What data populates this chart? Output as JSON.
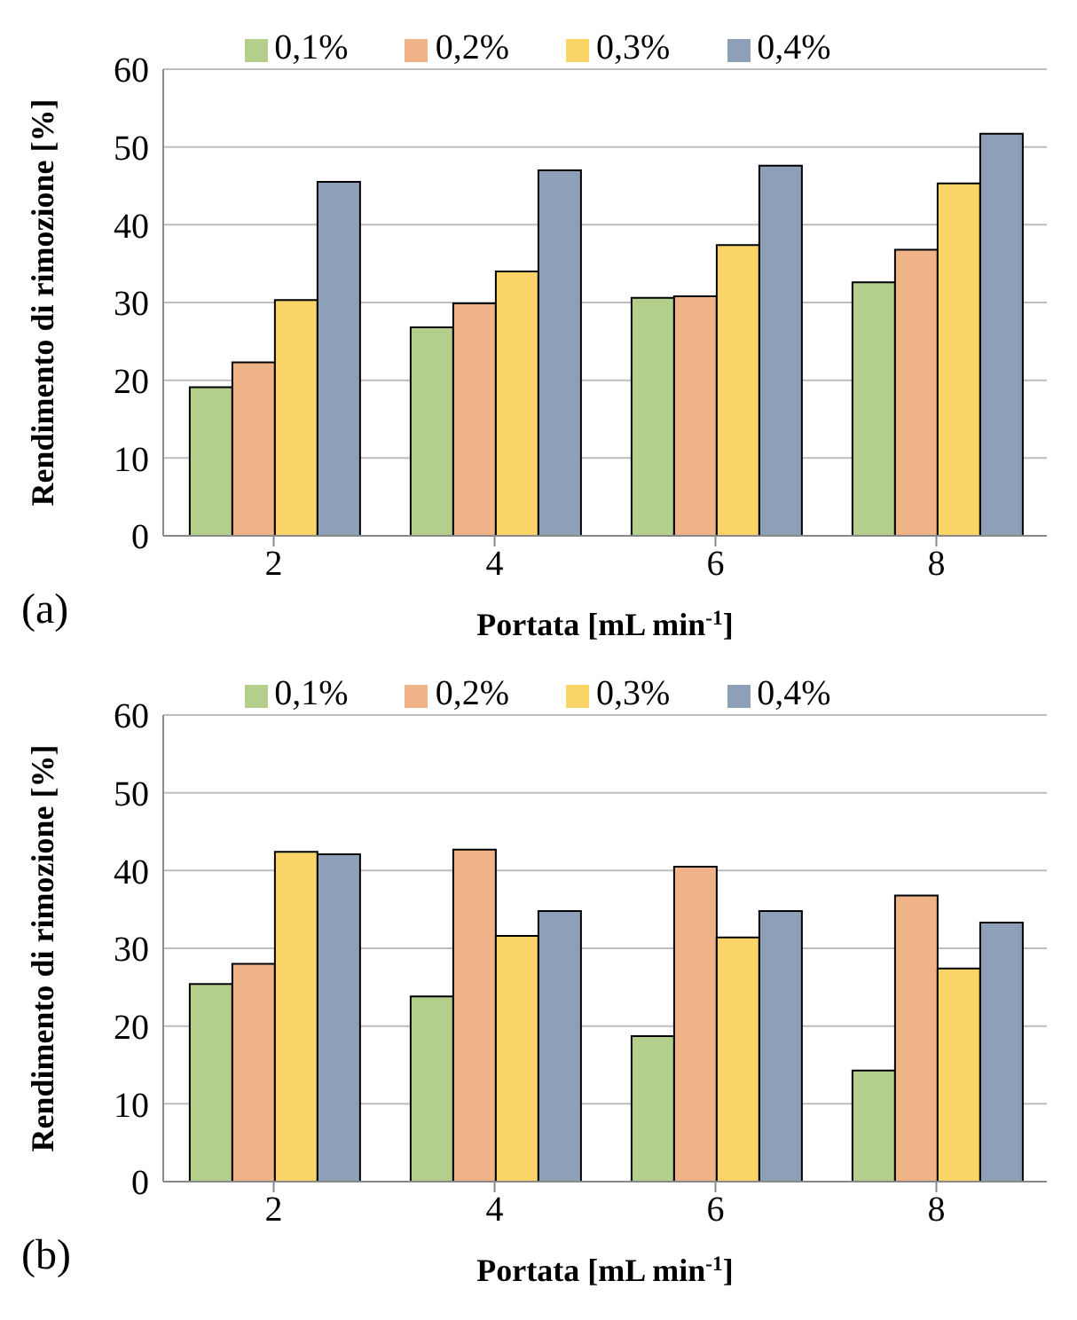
{
  "chart_data": [
    {
      "type": "bar",
      "xlabel": "Portata [mL min$^{-1}$]",
      "ylabel": "Rendimento di rimozione [%]",
      "annotations": [
        "(a)"
      ],
      "categories": [
        "2",
        "4",
        "6",
        "8"
      ],
      "ylim": [
        0,
        60
      ],
      "yticks": [
        0,
        10,
        20,
        30,
        40,
        50,
        60
      ],
      "grid": "y",
      "legend": "top",
      "series": [
        {
          "name": "0,1%",
          "color": "#b4cf8c",
          "values": [
            19.1,
            26.8,
            30.6,
            32.6
          ]
        },
        {
          "name": "0,2%",
          "color": "#f0b287",
          "values": [
            22.3,
            29.9,
            30.8,
            36.8
          ]
        },
        {
          "name": "0,3%",
          "color": "#fad466",
          "values": [
            30.3,
            34.0,
            37.4,
            45.3
          ]
        },
        {
          "name": "0,4%",
          "color": "#8e9fb8",
          "values": [
            45.5,
            47.0,
            47.6,
            51.7
          ]
        }
      ]
    },
    {
      "type": "bar",
      "xlabel": "Portata [mL min$^{-1}$]",
      "ylabel": "Rendimento di rimozione [%]",
      "annotations": [
        "(b)"
      ],
      "categories": [
        "2",
        "4",
        "6",
        "8"
      ],
      "ylim": [
        0,
        60
      ],
      "yticks": [
        0,
        10,
        20,
        30,
        40,
        50,
        60
      ],
      "grid": "y",
      "legend": "top",
      "series": [
        {
          "name": "0,1%",
          "color": "#b4cf8c",
          "values": [
            25.4,
            23.8,
            18.7,
            14.3
          ]
        },
        {
          "name": "0,2%",
          "color": "#f0b287",
          "values": [
            28.0,
            42.7,
            40.5,
            36.8
          ]
        },
        {
          "name": "0,3%",
          "color": "#fad466",
          "values": [
            42.4,
            31.6,
            31.4,
            27.4
          ]
        },
        {
          "name": "0,4%",
          "color": "#8e9fb8",
          "values": [
            42.1,
            34.8,
            34.8,
            33.3
          ]
        }
      ]
    }
  ]
}
